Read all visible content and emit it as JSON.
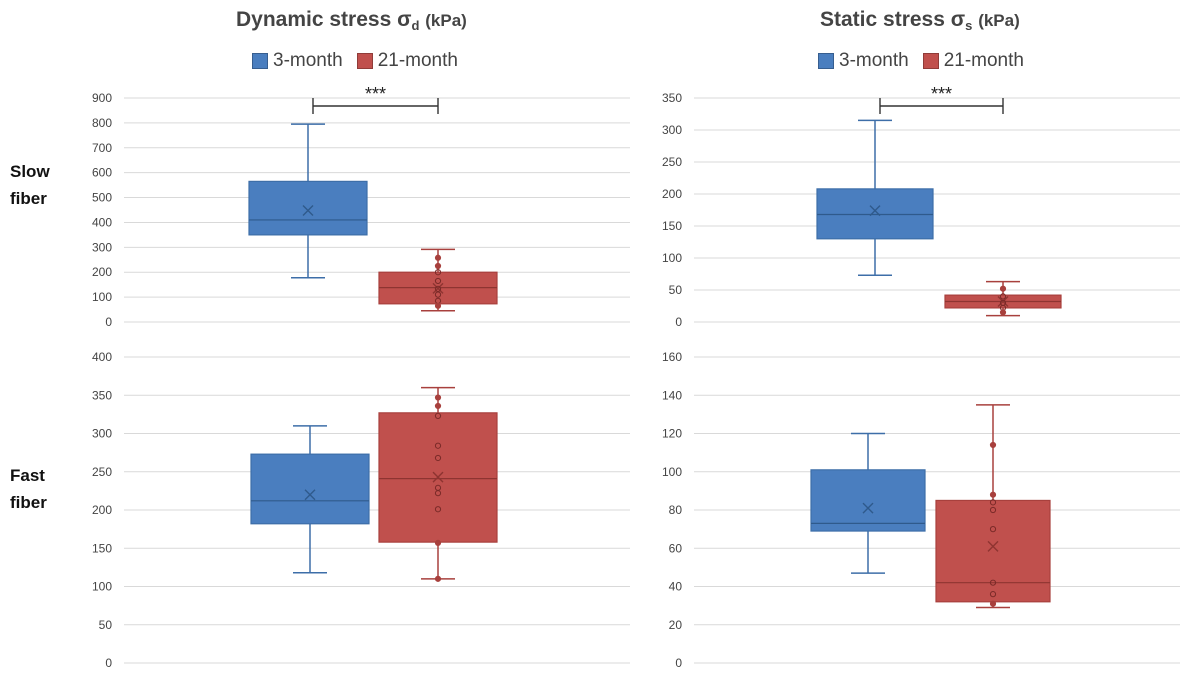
{
  "colors": {
    "three_month_fill": "#4a7ebf",
    "three_month_stroke": "#3d6ea8",
    "twentyone_month_fill": "#c0504d",
    "twentyone_month_stroke": "#a8403d",
    "grid": "#d9d9d9"
  },
  "titles": {
    "dynamic_main": "Dynamic stress σ",
    "dynamic_sub": "d",
    "dynamic_unit": "(kPa)",
    "static_main": "Static stress σ",
    "static_sub": "s",
    "static_unit": "(kPa)"
  },
  "legend": {
    "three_month": "3-month",
    "twentyone_month": "21-month"
  },
  "row_labels": {
    "slow_line1": "Slow",
    "slow_line2": "fiber",
    "fast_line1": "Fast",
    "fast_line2": "fiber"
  },
  "chart_data": [
    {
      "id": "dynamic-slow",
      "type": "box",
      "title": "Dynamic stress σd (kPa)",
      "row": "Slow fiber",
      "ylim": [
        0,
        900
      ],
      "yticks": [
        0,
        100,
        200,
        300,
        400,
        500,
        600,
        700,
        800,
        900
      ],
      "grid": true,
      "significance": "***",
      "series": [
        {
          "name": "3-month",
          "min": 178,
          "q1": 350,
          "median": 410,
          "q3": 565,
          "max": 795,
          "mean": 448,
          "points": []
        },
        {
          "name": "21-month",
          "min": 45,
          "q1": 73,
          "median": 138,
          "q3": 200,
          "max": 292,
          "mean": 135,
          "points": [
            258,
            225,
            200,
            165,
            133,
            110,
            85,
            65
          ]
        }
      ]
    },
    {
      "id": "static-slow",
      "type": "box",
      "title": "Static stress σs (kPa)",
      "row": "Slow fiber",
      "ylim": [
        0,
        350
      ],
      "yticks": [
        0,
        50,
        100,
        150,
        200,
        250,
        300,
        350
      ],
      "grid": true,
      "significance": "***",
      "series": [
        {
          "name": "3-month",
          "min": 73,
          "q1": 130,
          "median": 168,
          "q3": 208,
          "max": 315,
          "mean": 174,
          "points": []
        },
        {
          "name": "21-month",
          "min": 10,
          "q1": 22,
          "median": 32,
          "q3": 42,
          "max": 63,
          "mean": 32,
          "points": [
            52,
            40,
            30,
            22,
            15
          ]
        }
      ]
    },
    {
      "id": "dynamic-fast",
      "type": "box",
      "title": "Dynamic stress σd (kPa)",
      "row": "Fast fiber",
      "ylim": [
        0,
        400
      ],
      "yticks": [
        0,
        50,
        100,
        150,
        200,
        250,
        300,
        350,
        400
      ],
      "grid": true,
      "significance": "",
      "series": [
        {
          "name": "3-month",
          "min": 118,
          "q1": 182,
          "median": 212,
          "q3": 273,
          "max": 310,
          "mean": 220,
          "points": []
        },
        {
          "name": "21-month",
          "min": 110,
          "q1": 158,
          "median": 241,
          "q3": 327,
          "max": 360,
          "mean": 243,
          "points": [
            347,
            336,
            323,
            284,
            268,
            229,
            222,
            201,
            157,
            110
          ]
        }
      ]
    },
    {
      "id": "static-fast",
      "type": "box",
      "title": "Static stress σs (kPa)",
      "row": "Fast fiber",
      "ylim": [
        0,
        160
      ],
      "yticks": [
        0,
        20,
        40,
        60,
        80,
        100,
        120,
        140,
        160
      ],
      "grid": true,
      "significance": "",
      "series": [
        {
          "name": "3-month",
          "min": 47,
          "q1": 69,
          "median": 73,
          "q3": 101,
          "max": 120,
          "mean": 81,
          "points": []
        },
        {
          "name": "21-month",
          "min": 29,
          "q1": 32,
          "median": 42,
          "q3": 85,
          "max": 135,
          "mean": 61,
          "points": [
            114,
            88,
            84,
            80,
            70,
            42,
            36,
            31
          ]
        }
      ]
    }
  ]
}
